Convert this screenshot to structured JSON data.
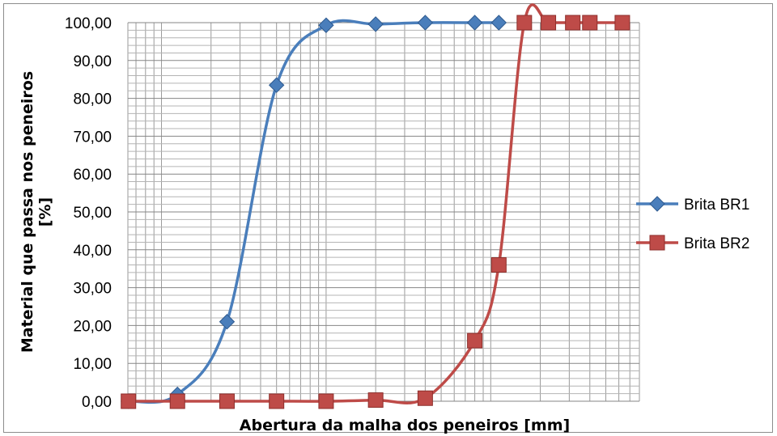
{
  "chart_data": {
    "type": "line",
    "xlabel": "Abertura da malha dos peneiros [mm]",
    "ylabel": "Material que passa nos peneiros [%]",
    "x_scale": "log",
    "xlim": [
      0.0625,
      80
    ],
    "ylim": [
      0,
      100
    ],
    "y_ticks": [
      "0,00",
      "10,00",
      "20,00",
      "30,00",
      "40,00",
      "50,00",
      "60,00",
      "70,00",
      "80,00",
      "90,00",
      "100,00"
    ],
    "x_tick_labels_shown": false,
    "grid": true,
    "legend_position": "right",
    "series": [
      {
        "name": "Brita BR1",
        "color": "#4a7ebb",
        "marker": "diamond",
        "points": [
          {
            "x": 0.063,
            "y": 0.0
          },
          {
            "x": 0.125,
            "y": 1.8
          },
          {
            "x": 0.25,
            "y": 21.0
          },
          {
            "x": 0.5,
            "y": 83.5
          },
          {
            "x": 1.0,
            "y": 99.3
          },
          {
            "x": 2.0,
            "y": 99.6
          },
          {
            "x": 4.0,
            "y": 100.0
          },
          {
            "x": 8.0,
            "y": 100.0
          },
          {
            "x": 11.2,
            "y": 100.0
          }
        ]
      },
      {
        "name": "Brita BR2",
        "color": "#be4b48",
        "marker": "square",
        "points": [
          {
            "x": 0.063,
            "y": 0.0
          },
          {
            "x": 0.125,
            "y": 0.0
          },
          {
            "x": 0.25,
            "y": 0.0
          },
          {
            "x": 0.5,
            "y": 0.0
          },
          {
            "x": 1.0,
            "y": 0.0
          },
          {
            "x": 2.0,
            "y": 0.3
          },
          {
            "x": 4.0,
            "y": 0.8
          },
          {
            "x": 8.0,
            "y": 16.0
          },
          {
            "x": 11.2,
            "y": 36.0
          },
          {
            "x": 16.0,
            "y": 100.0
          },
          {
            "x": 22.4,
            "y": 100.0
          },
          {
            "x": 31.5,
            "y": 100.0
          },
          {
            "x": 40.0,
            "y": 100.0
          },
          {
            "x": 63.0,
            "y": 100.0
          }
        ]
      }
    ]
  }
}
